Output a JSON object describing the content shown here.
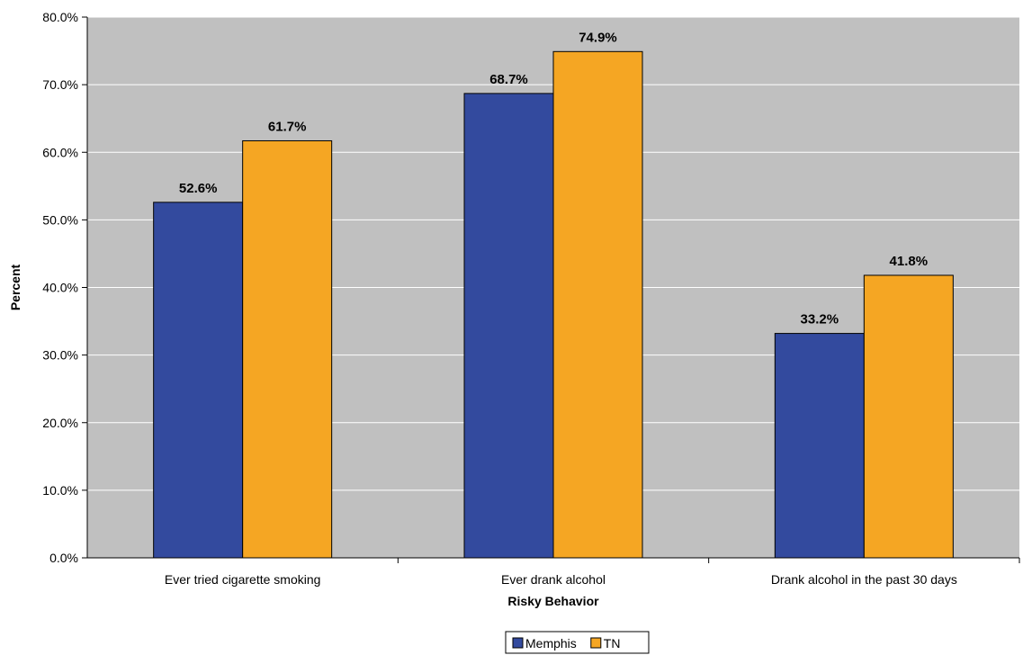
{
  "chart_data": {
    "type": "bar",
    "title": "",
    "xlabel": "Risky Behavior",
    "ylabel": "Percent",
    "ylim": [
      0,
      80
    ],
    "yticks": [
      0,
      10,
      20,
      30,
      40,
      50,
      60,
      70,
      80
    ],
    "tick_suffix": "%",
    "tick_decimals": 1,
    "grid": true,
    "legend_position": "bottom",
    "plot_background": "#c0c0c0",
    "categories": [
      "Ever tried cigarette smoking",
      "Ever drank alcohol",
      "Drank alcohol in the past 30 days"
    ],
    "series": [
      {
        "name": "Memphis",
        "color": "#334a9e",
        "values": [
          52.6,
          68.7,
          33.2
        ]
      },
      {
        "name": "TN",
        "color": "#f5a623",
        "values": [
          61.7,
          74.9,
          41.8
        ]
      }
    ]
  }
}
